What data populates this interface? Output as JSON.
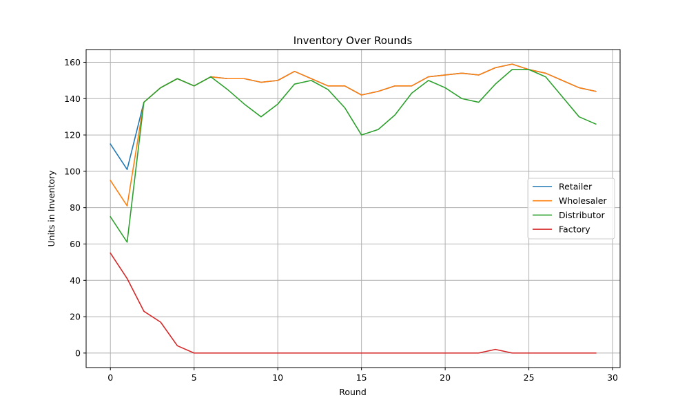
{
  "chart_data": {
    "type": "line",
    "title": "Inventory Over Rounds",
    "xlabel": "Round",
    "ylabel": "Units in Inventory",
    "xlim": [
      -1.45,
      30.45
    ],
    "ylim": [
      -8,
      167
    ],
    "xticks": [
      0,
      5,
      10,
      15,
      20,
      25,
      30
    ],
    "yticks": [
      0,
      20,
      40,
      60,
      80,
      100,
      120,
      140,
      160
    ],
    "grid": true,
    "legend_position": "center-right",
    "x": [
      0,
      1,
      2,
      3,
      4,
      5,
      6,
      7,
      8,
      9,
      10,
      11,
      12,
      13,
      14,
      15,
      16,
      17,
      18,
      19,
      20,
      21,
      22,
      23,
      24,
      25,
      26,
      27,
      28,
      29
    ],
    "series": [
      {
        "name": "Retailer",
        "color": "#1f77b4",
        "values": [
          115,
          101,
          138,
          146,
          151,
          147,
          152,
          151,
          151,
          149,
          150,
          155,
          151,
          147,
          147,
          142,
          144,
          147,
          147,
          152,
          153,
          154,
          153,
          157,
          159,
          156,
          154,
          150,
          146,
          144
        ]
      },
      {
        "name": "Wholesaler",
        "color": "#ff7f0e",
        "values": [
          95,
          81,
          138,
          146,
          151,
          147,
          152,
          151,
          151,
          149,
          150,
          155,
          151,
          147,
          147,
          142,
          144,
          147,
          147,
          152,
          153,
          154,
          153,
          157,
          159,
          156,
          154,
          150,
          146,
          144
        ]
      },
      {
        "name": "Distributor",
        "color": "#2ca02c",
        "values": [
          75,
          61,
          138,
          146,
          151,
          147,
          152,
          145,
          137,
          130,
          137,
          148,
          150,
          145,
          135,
          120,
          123,
          131,
          143,
          150,
          146,
          140,
          138,
          148,
          156,
          156,
          152,
          141,
          130,
          126
        ]
      },
      {
        "name": "Factory",
        "color": "#d62728",
        "values": [
          55,
          41,
          23,
          17,
          4,
          0,
          0,
          0,
          0,
          0,
          0,
          0,
          0,
          0,
          0,
          0,
          0,
          0,
          0,
          0,
          0,
          0,
          0,
          2,
          0,
          0,
          0,
          0,
          0,
          0
        ]
      }
    ]
  }
}
